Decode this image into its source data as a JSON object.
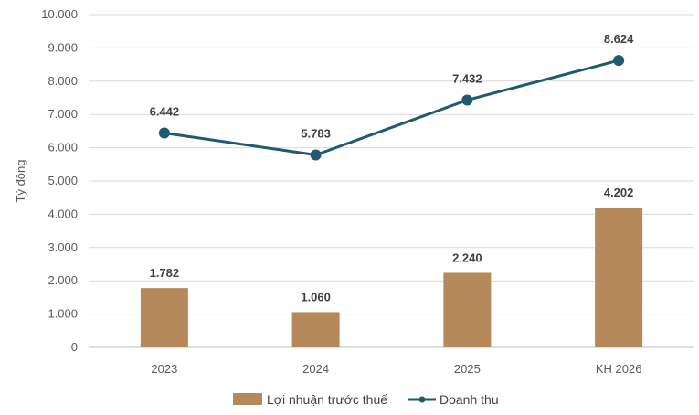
{
  "chart_data": {
    "type": "bar",
    "categories": [
      "2023",
      "2024",
      "2025",
      "KH 2026"
    ],
    "ylabel": "Tỷ đồng",
    "ylim": [
      0,
      10000
    ],
    "yticks": [
      "0",
      "1.000",
      "2.000",
      "3.000",
      "4.000",
      "5.000",
      "6.000",
      "7.000",
      "8.000",
      "9.000",
      "10.000"
    ],
    "ytick_values": [
      0,
      1000,
      2000,
      3000,
      4000,
      5000,
      6000,
      7000,
      8000,
      9000,
      10000
    ],
    "grid": true,
    "legend_position": "bottom",
    "series": [
      {
        "name": "Lợi nhuận trước thuế",
        "type": "bar",
        "color": "#B5895A",
        "values": [
          1782,
          1060,
          2240,
          4202
        ],
        "labels": [
          "1.782",
          "1.060",
          "2.240",
          "4.202"
        ]
      },
      {
        "name": "Doanh thu",
        "type": "line",
        "color": "#1F5A70",
        "values": [
          6442,
          5783,
          7432,
          8624
        ],
        "labels": [
          "6.442",
          "5.783",
          "7.432",
          "8.624"
        ]
      }
    ]
  }
}
